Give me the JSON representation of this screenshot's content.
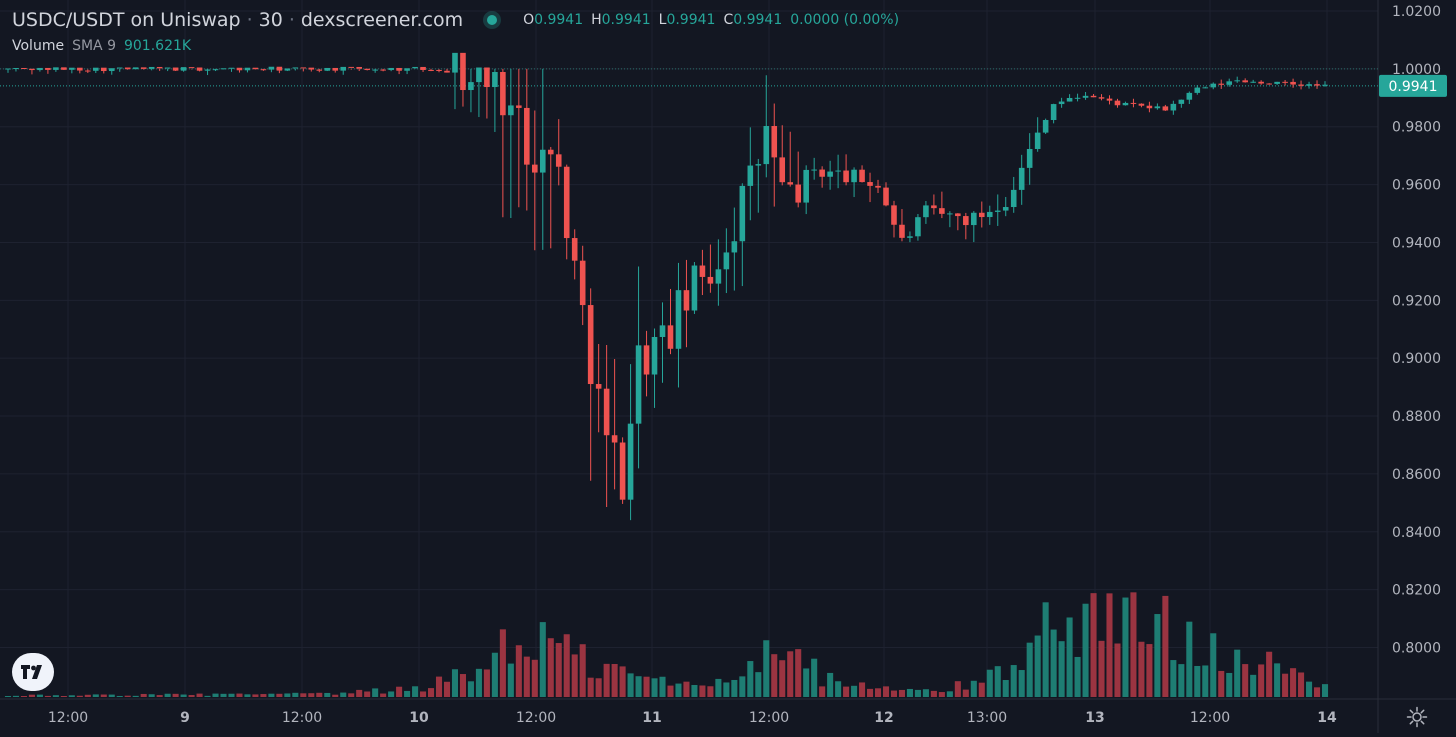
{
  "header": {
    "title": "USDC/USDT on Uniswap",
    "interval": "30",
    "source": "dexscreener.com",
    "ohlc": [
      {
        "key": "O",
        "value": "0.9941"
      },
      {
        "key": "H",
        "value": "0.9941"
      },
      {
        "key": "L",
        "value": "0.9941"
      },
      {
        "key": "C",
        "value": "0.9941"
      }
    ],
    "change": "0.0000 (0.00%)"
  },
  "volume_legend": {
    "label": "Volume",
    "indicator": "SMA 9",
    "value": "901.621K"
  },
  "colors": {
    "background": "#131722",
    "up": "#26a69a",
    "down": "#ef5350",
    "volume_up": "#1e7d73",
    "volume_down": "#9b3441",
    "grid": "#1e2230",
    "text": "#d1d4dc",
    "axis_text": "#b2b5be",
    "last_price_bg": "#26a69a"
  },
  "icons": {
    "logo": "tradingview-logo-icon",
    "settings": "gear-icon"
  },
  "chart_data": {
    "type": "candlestick",
    "y_axis": {
      "range": [
        0.786,
        1.025
      ],
      "tick_labels": [
        "1.0200",
        "1.0000",
        "0.9800",
        "0.9600",
        "0.9400",
        "0.9200",
        "0.9000",
        "0.8800",
        "0.8600",
        "0.8400",
        "0.8200",
        "0.8000"
      ]
    },
    "x_axis": {
      "tick_labels": [
        "12:00",
        "9",
        "12:00",
        "10",
        "12:00",
        "11",
        "12:00",
        "12",
        "13:00",
        "13",
        "12:00",
        "14"
      ]
    },
    "last_price": "0.9941",
    "reference_level": 1.0,
    "grid": true,
    "candle_keypoints": [
      [
        0,
        1.0
      ],
      [
        55,
        1.0
      ],
      [
        60,
        0.997
      ],
      [
        63,
        0.992
      ],
      [
        66,
        0.975
      ],
      [
        70,
        0.965
      ],
      [
        72,
        0.93
      ],
      [
        74,
        0.9
      ],
      [
        76,
        0.87
      ],
      [
        78,
        0.86
      ],
      [
        80,
        0.9
      ],
      [
        83,
        0.905
      ],
      [
        86,
        0.92
      ],
      [
        90,
        0.935
      ],
      [
        94,
        0.96
      ],
      [
        96,
        0.978
      ],
      [
        98,
        0.955
      ],
      [
        102,
        0.965
      ],
      [
        106,
        0.963
      ],
      [
        110,
        0.96
      ],
      [
        113,
        0.94
      ],
      [
        116,
        0.95
      ],
      [
        122,
        0.948
      ],
      [
        126,
        0.955
      ],
      [
        128,
        0.965
      ],
      [
        130,
        0.978
      ],
      [
        132,
        0.988
      ],
      [
        136,
        0.991
      ],
      [
        140,
        0.988
      ],
      [
        146,
        0.986
      ],
      [
        150,
        0.993
      ],
      [
        155,
        0.996
      ],
      [
        160,
        0.995
      ],
      [
        166,
        0.994
      ]
    ],
    "volume_keypoints": [
      [
        0,
        0.01
      ],
      [
        40,
        0.02
      ],
      [
        50,
        0.05
      ],
      [
        58,
        0.15
      ],
      [
        62,
        0.35
      ],
      [
        66,
        0.4
      ],
      [
        70,
        0.3
      ],
      [
        74,
        0.2
      ],
      [
        78,
        0.15
      ],
      [
        84,
        0.08
      ],
      [
        90,
        0.1
      ],
      [
        94,
        0.3
      ],
      [
        96,
        0.5
      ],
      [
        98,
        0.25
      ],
      [
        104,
        0.1
      ],
      [
        110,
        0.05
      ],
      [
        116,
        0.04
      ],
      [
        122,
        0.1
      ],
      [
        126,
        0.25
      ],
      [
        130,
        0.45
      ],
      [
        134,
        0.55
      ],
      [
        140,
        0.5
      ],
      [
        146,
        0.45
      ],
      [
        150,
        0.4
      ],
      [
        154,
        0.3
      ],
      [
        158,
        0.2
      ],
      [
        166,
        0.05
      ]
    ],
    "volume_scale_max": 1.0
  }
}
